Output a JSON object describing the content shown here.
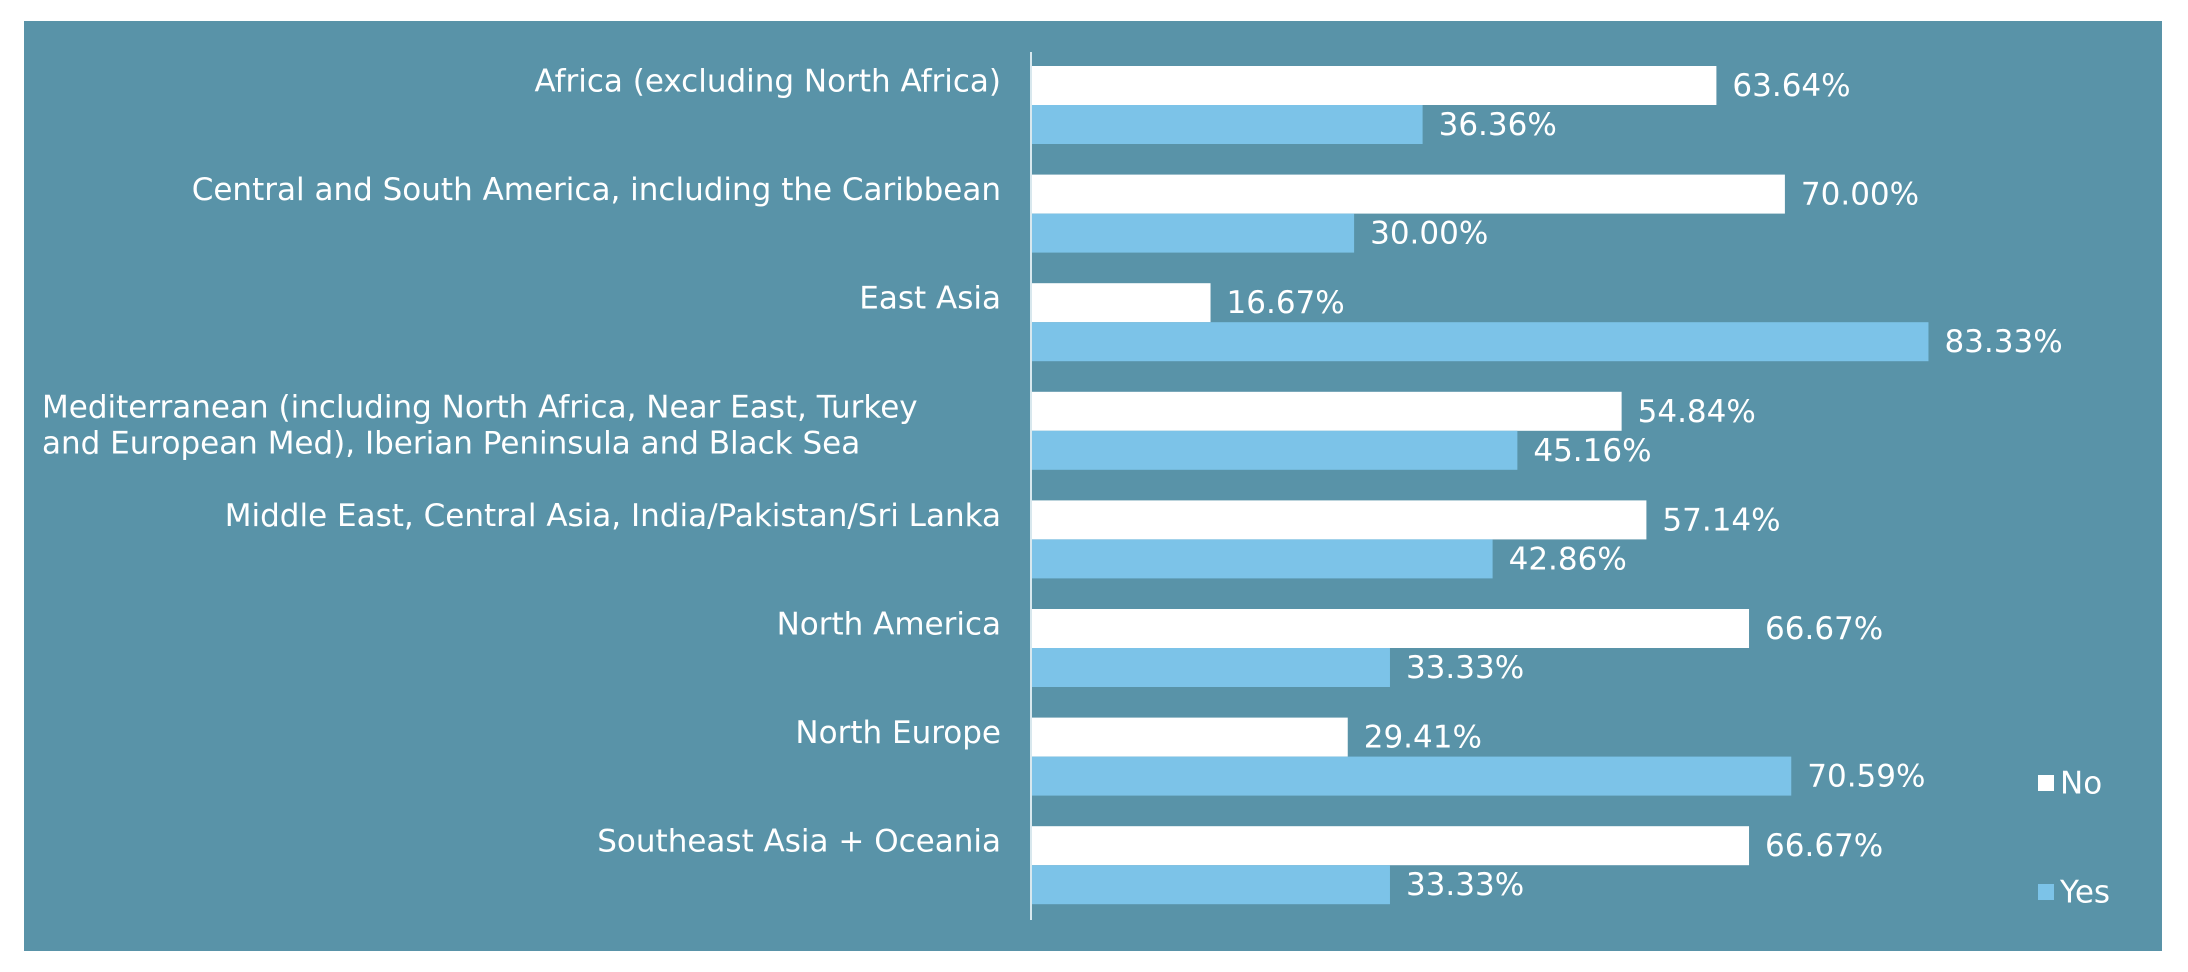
{
  "chart_data": {
    "type": "bar",
    "orientation": "horizontal",
    "title": "",
    "xlabel": "",
    "ylabel": "",
    "xlim": [
      0,
      100
    ],
    "grid": false,
    "legend_position": "bottom-right",
    "value_format": "percent_2dp",
    "categories": [
      [
        "Africa (excluding North Africa)"
      ],
      [
        "Central and South America, including the Caribbean"
      ],
      [
        "East Asia"
      ],
      [
        "Mediterranean (including North Africa, Near East, Turkey",
        "and European Med), Iberian Peninsula and Black Sea"
      ],
      [
        "Middle East, Central Asia, India/Pakistan/Sri Lanka"
      ],
      [
        "North America"
      ],
      [
        "North Europe"
      ],
      [
        "Southeast Asia + Oceania"
      ]
    ],
    "series": [
      {
        "name": "No",
        "color": "#ffffff",
        "values": [
          63.64,
          70.0,
          16.67,
          54.84,
          57.14,
          66.67,
          29.41,
          66.67
        ],
        "labels": [
          "63.64%",
          "70.00%",
          "16.67%",
          "54.84%",
          "57.14%",
          "66.67%",
          "29.41%",
          "66.67%"
        ]
      },
      {
        "name": "Yes",
        "color": "#7cc3e8",
        "values": [
          36.36,
          30.0,
          83.33,
          45.16,
          42.86,
          33.33,
          70.59,
          33.33
        ],
        "labels": [
          "36.36%",
          "30.00%",
          "83.33%",
          "45.16%",
          "42.86%",
          "33.33%",
          "70.59%",
          "33.33%"
        ]
      }
    ],
    "colors": {
      "background": "#5993a8",
      "axis": "#d8e8ee",
      "text": "#ffffff"
    }
  }
}
